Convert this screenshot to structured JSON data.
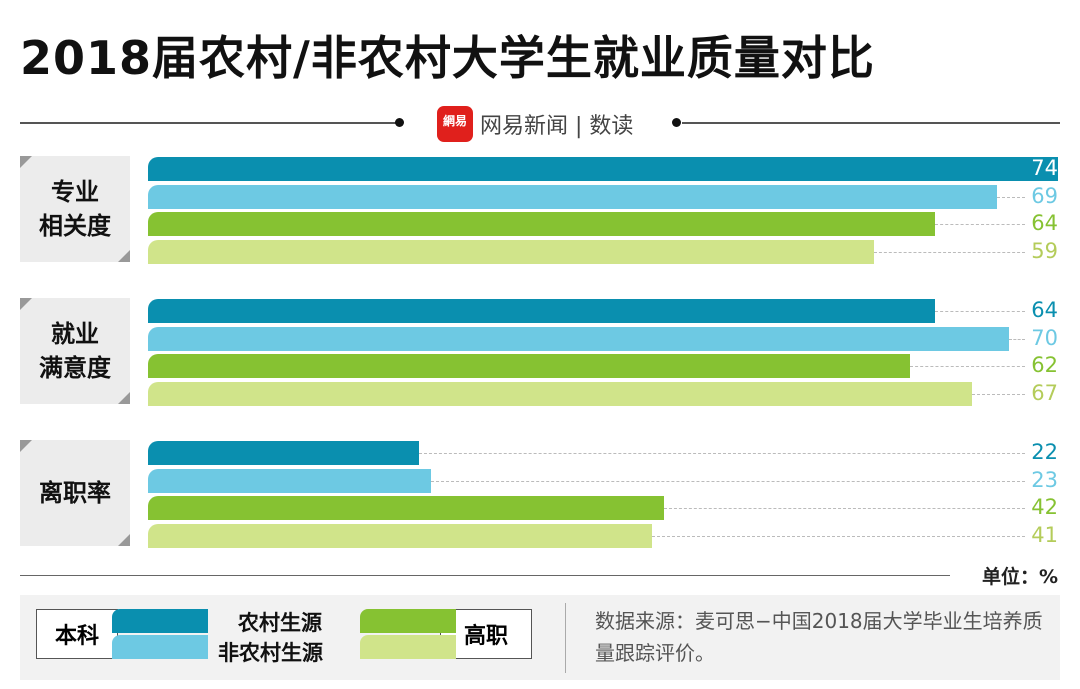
{
  "title": "2018届农村/非农村大学生就业质量对比",
  "brand": {
    "logo_text": "網易",
    "name": "网易新闻",
    "section": "数读"
  },
  "unit": "单位：%",
  "colors": {
    "本科农村生源": "#0a8faf",
    "本科非农村生源": "#6dc9e3",
    "高职农村生源": "#86c232",
    "高职非农村生源": "#d0e48a"
  },
  "chart_data": {
    "type": "bar",
    "orientation": "horizontal",
    "title": "2018届农村/非农村大学生就业质量对比",
    "categories": [
      "专业相关度",
      "就业满意度",
      "离职率"
    ],
    "category_labels": [
      [
        "专业",
        "相关度"
      ],
      [
        "就业",
        "满意度"
      ],
      [
        "离职率"
      ]
    ],
    "series": [
      {
        "name": "本科 农村生源",
        "values": [
          74,
          64,
          22
        ]
      },
      {
        "name": "本科 非农村生源",
        "values": [
          69,
          70,
          23
        ]
      },
      {
        "name": "高职 农村生源",
        "values": [
          64,
          62,
          42
        ]
      },
      {
        "name": "高职 非农村生源",
        "values": [
          59,
          67,
          41
        ]
      }
    ],
    "unit": "%",
    "xlim": [
      0,
      74
    ],
    "legend": "bottom"
  },
  "legend": {
    "group_left": "本科",
    "group_right": "高职",
    "rural": "农村生源",
    "nonrural": "非农村生源"
  },
  "source": "数据来源：麦可思−中国2018届大学毕业生培养质量跟踪评价。"
}
